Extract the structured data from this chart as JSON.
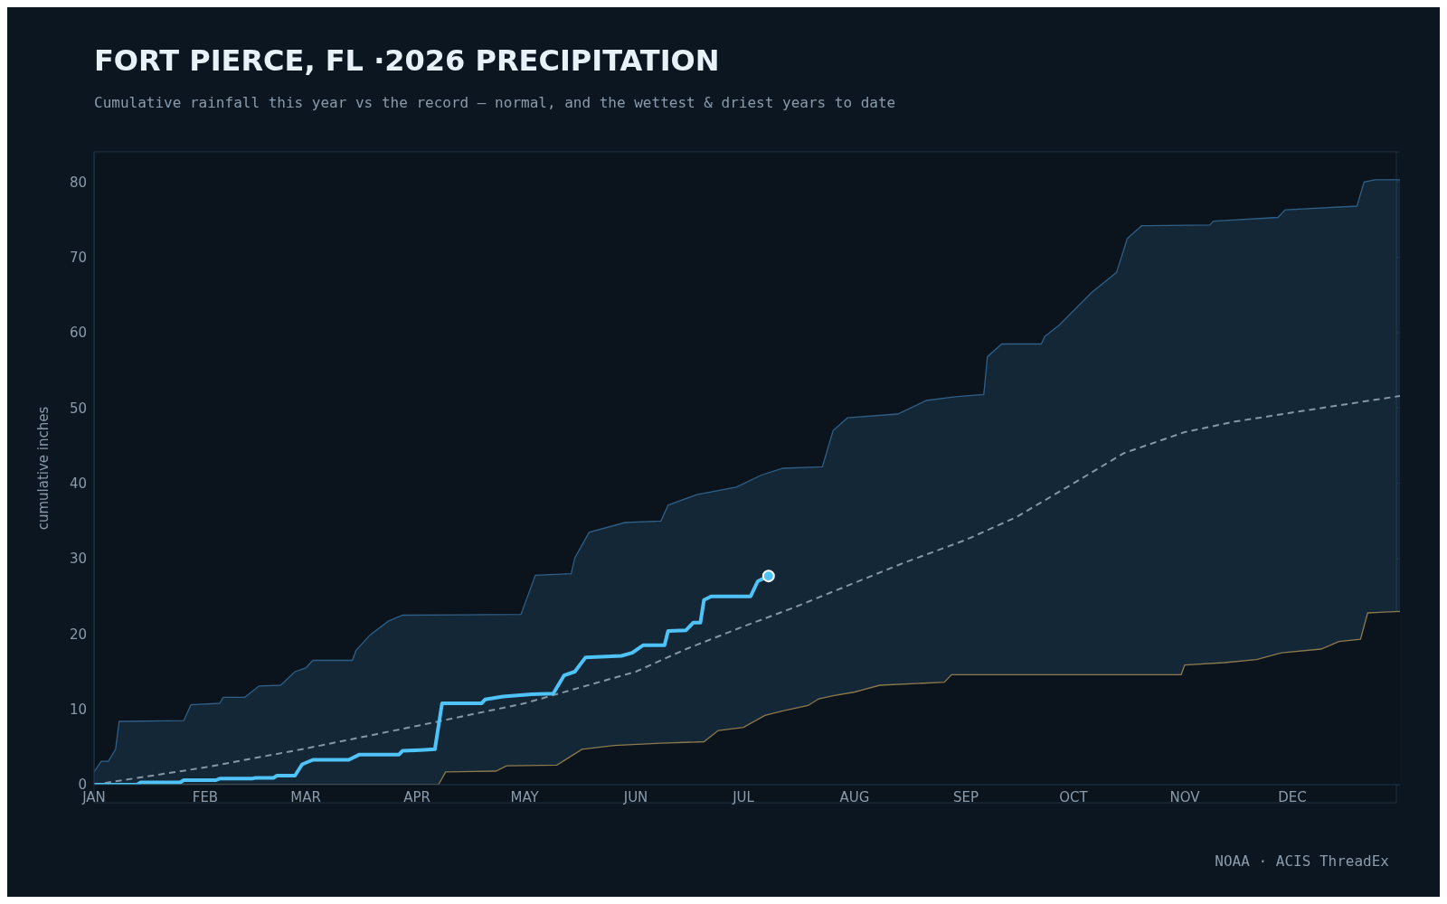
{
  "chart_data": {
    "type": "line",
    "title": "FORT PIERCE, FL ·2026 PRECIPITATION",
    "subtitle": "Cumulative rainfall this year vs the record — normal, and the wettest & driest years to date",
    "ylabel": "cumulative inches",
    "annotations": [
      "NOAA · ACIS ThreadEx"
    ],
    "xlim": [
      "2026-01-01",
      "2026-12-31"
    ],
    "xticks": [
      {
        "value": "2026-01-01",
        "label": "JAN"
      },
      {
        "value": "2026-02-01",
        "label": "FEB"
      },
      {
        "value": "2026-03-01",
        "label": "MAR"
      },
      {
        "value": "2026-04-01",
        "label": "APR"
      },
      {
        "value": "2026-05-01",
        "label": "MAY"
      },
      {
        "value": "2026-06-01",
        "label": "JUN"
      },
      {
        "value": "2026-07-01",
        "label": "JUL"
      },
      {
        "value": "2026-08-01",
        "label": "AUG"
      },
      {
        "value": "2026-09-01",
        "label": "SEP"
      },
      {
        "value": "2026-10-01",
        "label": "OCT"
      },
      {
        "value": "2026-11-01",
        "label": "NOV"
      },
      {
        "value": "2026-12-01",
        "label": "DEC"
      }
    ],
    "ylim": [
      0,
      84
    ],
    "yticks": [
      0,
      10,
      20,
      30,
      40,
      50,
      60,
      70,
      80
    ],
    "grid": "y",
    "legend": false,
    "series": [
      {
        "type": "area",
        "color": "#2f5f86",
        "x": [
          "2026-01-01",
          "2026-01-03",
          "2026-01-05",
          "2026-01-07",
          "2026-01-08",
          "2026-01-26",
          "2026-01-28",
          "2026-02-05",
          "2026-02-06",
          "2026-02-12",
          "2026-02-16",
          "2026-02-22",
          "2026-02-26",
          "2026-03-01",
          "2026-03-03",
          "2026-03-14",
          "2026-03-15",
          "2026-03-19",
          "2026-03-24",
          "2026-03-28",
          "2026-04-30",
          "2026-05-04",
          "2026-05-14",
          "2026-05-15",
          "2026-05-19",
          "2026-05-29",
          "2026-06-08",
          "2026-06-10",
          "2026-06-18",
          "2026-06-29",
          "2026-07-06",
          "2026-07-12",
          "2026-07-23",
          "2026-07-26",
          "2026-07-30",
          "2026-08-13",
          "2026-08-21",
          "2026-08-29",
          "2026-09-06",
          "2026-09-07",
          "2026-09-11",
          "2026-09-22",
          "2026-09-23",
          "2026-09-27",
          "2026-10-01",
          "2026-10-06",
          "2026-10-13",
          "2026-10-16",
          "2026-10-20",
          "2026-11-08",
          "2026-11-09",
          "2026-11-27",
          "2026-11-29",
          "2026-12-19",
          "2026-12-21",
          "2026-12-24",
          "2026-12-31"
        ],
        "values": [
          1.7,
          3.1,
          3.1,
          4.7,
          8.4,
          8.5,
          10.6,
          10.8,
          11.6,
          11.6,
          13.1,
          13.2,
          15.0,
          15.5,
          16.5,
          16.5,
          17.8,
          19.9,
          21.7,
          22.5,
          22.6,
          27.8,
          28.0,
          30.1,
          33.5,
          34.8,
          35.0,
          37.1,
          38.5,
          39.5,
          41.1,
          42.0,
          42.2,
          47.0,
          48.7,
          49.2,
          51.0,
          51.5,
          51.8,
          56.8,
          58.5,
          58.5,
          59.5,
          61.0,
          62.9,
          65.3,
          68.0,
          72.5,
          74.2,
          74.3,
          74.8,
          75.3,
          76.3,
          76.8,
          80.0,
          80.3,
          80.3
        ]
      },
      {
        "type": "area",
        "color": "#8c7a4e",
        "x": [
          "2026-01-01",
          "2026-04-07",
          "2026-04-09",
          "2026-04-23",
          "2026-04-26",
          "2026-05-10",
          "2026-05-13",
          "2026-05-17",
          "2026-05-26",
          "2026-06-08",
          "2026-06-20",
          "2026-06-24",
          "2026-07-01",
          "2026-07-07",
          "2026-07-12",
          "2026-07-19",
          "2026-07-22",
          "2026-07-26",
          "2026-08-01",
          "2026-08-08",
          "2026-08-26",
          "2026-08-28",
          "2026-10-31",
          "2026-11-01",
          "2026-11-12",
          "2026-11-21",
          "2026-11-28",
          "2026-12-09",
          "2026-12-14",
          "2026-12-20",
          "2026-12-22",
          "2026-12-31"
        ],
        "values": [
          0,
          0,
          1.7,
          1.8,
          2.5,
          2.6,
          3.5,
          4.7,
          5.2,
          5.5,
          5.7,
          7.2,
          7.6,
          9.2,
          9.8,
          10.5,
          11.4,
          11.8,
          12.3,
          13.2,
          13.6,
          14.6,
          14.6,
          15.9,
          16.2,
          16.6,
          17.5,
          18.0,
          19.0,
          19.3,
          22.8,
          23.0
        ]
      },
      {
        "color": "#8796a6",
        "line_style": "dashed",
        "x": [
          "2026-01-01",
          "2026-02-01",
          "2026-03-01",
          "2026-04-01",
          "2026-05-01",
          "2026-06-01",
          "2026-06-15",
          "2026-07-01",
          "2026-07-15",
          "2026-08-01",
          "2026-08-15",
          "2026-09-01",
          "2026-09-15",
          "2026-10-01",
          "2026-10-15",
          "2026-11-01",
          "2026-11-15",
          "2026-12-01",
          "2026-12-31"
        ],
        "values": [
          0,
          2.3,
          4.8,
          7.8,
          10.8,
          15.0,
          18.0,
          21.0,
          23.5,
          26.8,
          29.5,
          32.5,
          35.5,
          40.0,
          44.0,
          46.8,
          48.2,
          49.4,
          51.6
        ]
      },
      {
        "color": "#4fc3f7",
        "line_style": "solid",
        "x": [
          "2026-01-01",
          "2026-01-13",
          "2026-01-14",
          "2026-01-25",
          "2026-01-26",
          "2026-02-04",
          "2026-02-05",
          "2026-02-14",
          "2026-02-15",
          "2026-02-20",
          "2026-02-21",
          "2026-02-26",
          "2026-02-28",
          "2026-03-03",
          "2026-03-13",
          "2026-03-16",
          "2026-03-27",
          "2026-03-28",
          "2026-04-02",
          "2026-04-06",
          "2026-04-08",
          "2026-04-19",
          "2026-04-20",
          "2026-04-25",
          "2026-05-03",
          "2026-05-09",
          "2026-05-12",
          "2026-05-15",
          "2026-05-18",
          "2026-05-28",
          "2026-05-31",
          "2026-06-03",
          "2026-06-09",
          "2026-06-10",
          "2026-06-15",
          "2026-06-17",
          "2026-06-19",
          "2026-06-20",
          "2026-06-22",
          "2026-07-03",
          "2026-07-05",
          "2026-07-08"
        ],
        "values": [
          0,
          0,
          0.3,
          0.3,
          0.6,
          0.6,
          0.8,
          0.8,
          0.9,
          0.9,
          1.2,
          1.2,
          2.7,
          3.3,
          3.3,
          4.0,
          4.0,
          4.5,
          4.6,
          4.7,
          10.8,
          10.8,
          11.3,
          11.7,
          12.0,
          12.1,
          14.5,
          15.0,
          16.9,
          17.1,
          17.5,
          18.5,
          18.5,
          20.4,
          20.5,
          21.5,
          21.5,
          24.5,
          25.0,
          25.0,
          27.0,
          27.7
        ]
      },
      {
        "type": "scatter",
        "color": "#4fc3f7",
        "marker": "circle",
        "x": [
          "2026-07-08"
        ],
        "values": [
          27.7
        ]
      }
    ]
  }
}
